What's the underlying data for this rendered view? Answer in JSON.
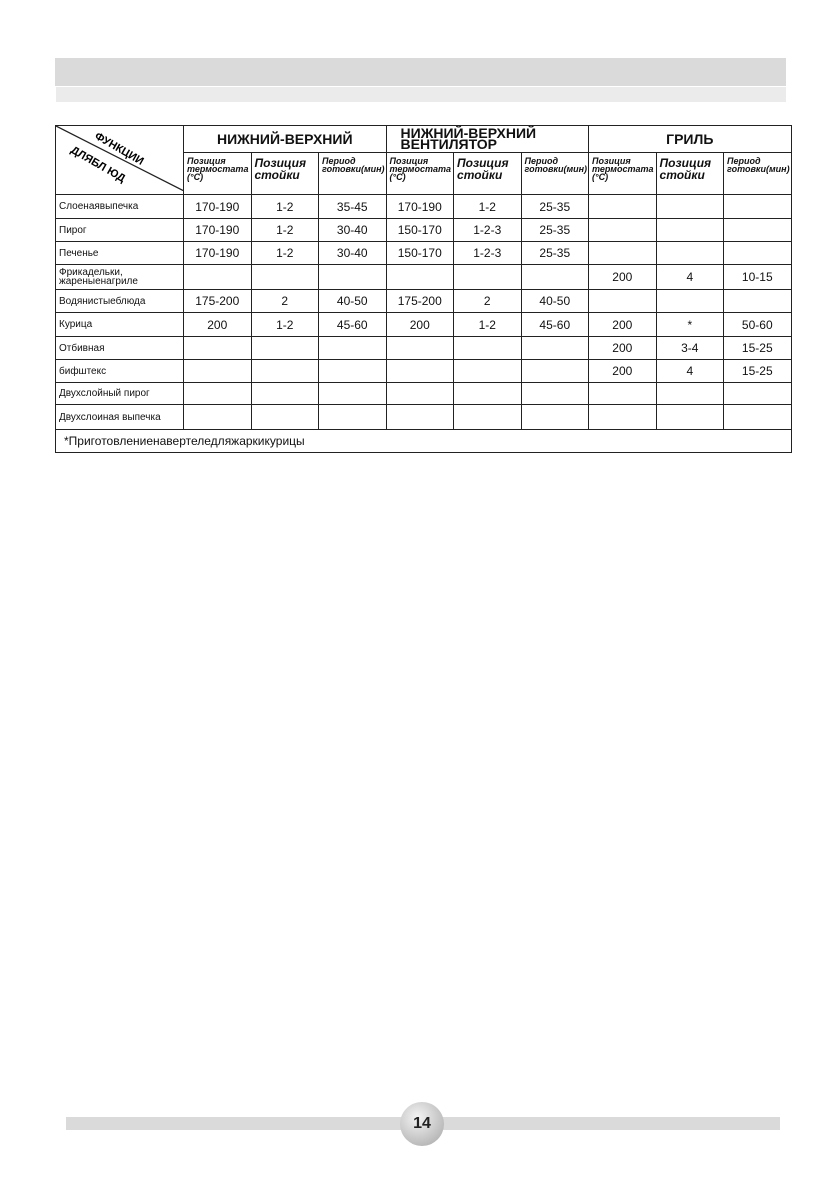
{
  "corner": {
    "top": "ФУНКЦИИ",
    "bottom": "ДЛЯБЛ ЮД"
  },
  "groups": [
    "НИЖНИЙ-ВЕРХНИЙ",
    "НИЖНИЙ-ВЕРХНИЙ ВЕНТИЛЯТОР",
    "ГРИЛЬ"
  ],
  "subheaders": [
    "Позиция термостата (°С)",
    "Позиция стойки",
    "Период готовки(мин)"
  ],
  "rows": [
    {
      "name": "Слоенаявыпечка",
      "cells": [
        "170-190",
        "1-2",
        "35-45",
        "170-190",
        "1-2",
        "25-35",
        "",
        "",
        ""
      ]
    },
    {
      "name": "Пирог",
      "cells": [
        "170-190",
        "1-2",
        "30-40",
        "150-170",
        "1-2-3",
        "25-35",
        "",
        "",
        ""
      ]
    },
    {
      "name": "Печенье",
      "cells": [
        "170-190",
        "1-2",
        "30-40",
        "150-170",
        "1-2-3",
        "25-35",
        "",
        "",
        ""
      ]
    },
    {
      "name": "Фрикадельки, жареныенагриле",
      "cells": [
        "",
        "",
        "",
        "",
        "",
        "",
        "200",
        "4",
        "10-15"
      ]
    },
    {
      "name": "Водянистыеблюда",
      "cells": [
        "175-200",
        "2",
        "40-50",
        "175-200",
        "2",
        "40-50",
        "",
        "",
        ""
      ]
    },
    {
      "name": "Курица",
      "cells": [
        "200",
        "1-2",
        "45-60",
        "200",
        "1-2",
        "45-60",
        "200",
        "*",
        "50-60"
      ]
    },
    {
      "name": "Отбивная",
      "cells": [
        "",
        "",
        "",
        "",
        "",
        "",
        "200",
        "3-4",
        "15-25"
      ]
    },
    {
      "name": "бифштекс",
      "cells": [
        "",
        "",
        "",
        "",
        "",
        "",
        "200",
        "4",
        "15-25"
      ]
    },
    {
      "name": "Двухслойный пирог",
      "cells": [
        "",
        "",
        "",
        "",
        "",
        "",
        "",
        "",
        ""
      ]
    },
    {
      "name": "Двухслоиная выпечка",
      "cells": [
        "",
        "",
        "",
        "",
        "",
        "",
        "",
        "",
        ""
      ]
    }
  ],
  "footnote": "*Приготовлениенавертеледляжаркикурицы",
  "page_number": "14"
}
